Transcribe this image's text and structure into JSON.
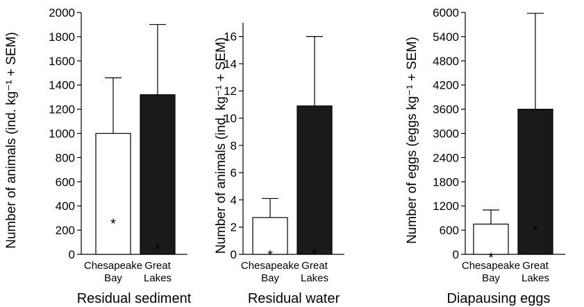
{
  "chart_data": [
    {
      "type": "bar",
      "title": "Residual sediment",
      "ylabel": "Number of animals (ind. kg⁻¹ + SEM)",
      "categories": [
        "Chesapeake Bay",
        "Great Lakes"
      ],
      "category_lines": [
        [
          "Chesapeake",
          "Bay"
        ],
        [
          "Great",
          "Lakes"
        ]
      ],
      "values": [
        1000,
        1320
      ],
      "sem_upper": [
        1460,
        1900
      ],
      "bar_colors": [
        "#ffffff",
        "#1a1a1a"
      ],
      "ylim": [
        0,
        2000
      ],
      "yticks": [
        0,
        200,
        400,
        600,
        800,
        1000,
        1200,
        1400,
        1600,
        1800,
        2000
      ],
      "asterisks": [
        {
          "category": 0,
          "y": 290,
          "color": "#000000"
        },
        {
          "category": 1,
          "y": 80,
          "color": "#ffffff"
        }
      ],
      "grid": false
    },
    {
      "type": "bar",
      "title": "Residual water",
      "ylabel": "Number of animals (ind. kg⁻¹ + SEM)",
      "categories": [
        "Chesapeake Bay",
        "Great Lakes"
      ],
      "category_lines": [
        [
          "Chesapeake",
          "Bay"
        ],
        [
          "Great",
          "Lakes"
        ]
      ],
      "values": [
        2.7,
        10.9
      ],
      "sem_upper": [
        4.1,
        16
      ],
      "bar_colors": [
        "#ffffff",
        "#1a1a1a"
      ],
      "ylim": [
        0,
        17
      ],
      "yticks": [
        0,
        2,
        4,
        6,
        8,
        10,
        12,
        14,
        16
      ],
      "asterisks": [
        {
          "category": 0,
          "y": 0.25,
          "color": "#000000"
        },
        {
          "category": 1,
          "y": 0.35,
          "color": "#ffffff"
        }
      ],
      "grid": false
    },
    {
      "type": "bar",
      "title": "Diapausing eggs",
      "ylabel": "Number of eggs (eggs kg⁻¹ + SEM)",
      "categories": [
        "Chesapeake Bay",
        "Great Lakes"
      ],
      "category_lines": [
        [
          "Chesapeake",
          "Bay"
        ],
        [
          "Great",
          "Lakes"
        ]
      ],
      "values": [
        750,
        3600
      ],
      "sem_upper": [
        1100,
        5980
      ],
      "bar_colors": [
        "#ffffff",
        "#1a1a1a"
      ],
      "ylim": [
        0,
        6000
      ],
      "yticks": [
        0,
        600,
        1200,
        1800,
        2400,
        3000,
        3600,
        4200,
        4800,
        5400,
        6000
      ],
      "asterisks": [
        {
          "category": 0,
          "y": 30,
          "color": "#000000"
        },
        {
          "category": 1,
          "y": 700,
          "color": "#ffffff"
        }
      ],
      "grid": false
    }
  ]
}
